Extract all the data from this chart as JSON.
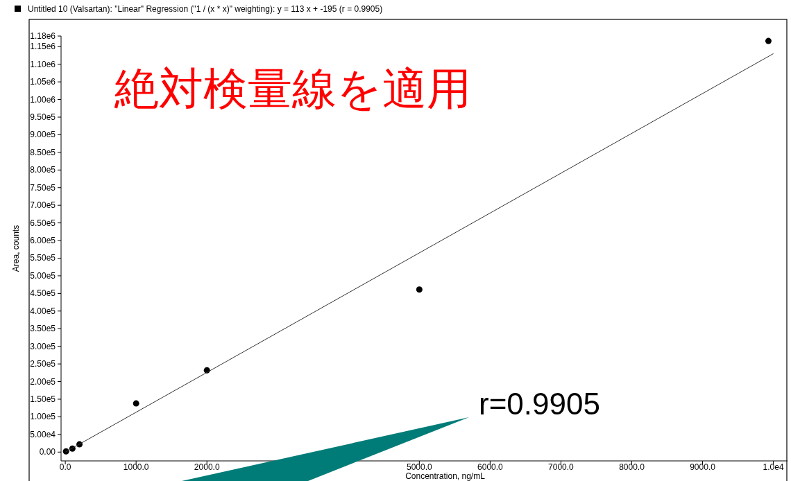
{
  "chart_data": {
    "type": "scatter",
    "xlabel": "Concentration, ng/mL",
    "ylabel": "Area, counts",
    "legend": "top left",
    "grid": false,
    "xlim": [
      -60,
      10200
    ],
    "ylim": [
      -25000,
      1180000
    ],
    "xticks": [
      {
        "value": 0,
        "label": "0.0"
      },
      {
        "value": 1000,
        "label": "1000.0"
      },
      {
        "value": 2000,
        "label": "2000.0"
      },
      {
        "value": 3000,
        "label": null
      },
      {
        "value": 4000,
        "label": null
      },
      {
        "value": 5000,
        "label": "5000.0"
      },
      {
        "value": 6000,
        "label": "6000.0"
      },
      {
        "value": 7000,
        "label": "7000.0"
      },
      {
        "value": 8000,
        "label": "8000.0"
      },
      {
        "value": 9000,
        "label": "9000.0"
      },
      {
        "value": 10000,
        "label": "1.0e4"
      }
    ],
    "yticks": [
      {
        "value": 0,
        "label": "0.00"
      },
      {
        "value": 50000,
        "label": "5.00e4"
      },
      {
        "value": 100000,
        "label": "1.00e5"
      },
      {
        "value": 150000,
        "label": "1.50e5"
      },
      {
        "value": 200000,
        "label": "2.00e5"
      },
      {
        "value": 250000,
        "label": "2.50e5"
      },
      {
        "value": 300000,
        "label": "3.00e5"
      },
      {
        "value": 350000,
        "label": "3.50e5"
      },
      {
        "value": 400000,
        "label": "4.00e5"
      },
      {
        "value": 450000,
        "label": "4.50e5"
      },
      {
        "value": 500000,
        "label": "5.00e5"
      },
      {
        "value": 550000,
        "label": "5.50e5"
      },
      {
        "value": 600000,
        "label": "6.00e5"
      },
      {
        "value": 650000,
        "label": "6.50e5"
      },
      {
        "value": 700000,
        "label": "7.00e5"
      },
      {
        "value": 750000,
        "label": "7.50e5"
      },
      {
        "value": 800000,
        "label": "8.00e5"
      },
      {
        "value": 850000,
        "label": "8.50e5"
      },
      {
        "value": 900000,
        "label": "9.00e5"
      },
      {
        "value": 950000,
        "label": "9.50e5"
      },
      {
        "value": 1000000,
        "label": "1.00e6"
      },
      {
        "value": 1050000,
        "label": "1.05e6"
      },
      {
        "value": 1100000,
        "label": "1.10e6"
      },
      {
        "value": 1150000,
        "label": "1.15e6"
      },
      {
        "value": 1180000,
        "label": "1.18e6"
      }
    ],
    "series": [
      {
        "name": "Untitled 10 (Valsartan): \"Linear\" Regression (\"1  / (x * x)\" weighting): y = 113 x + -195 (r = 0.9905)",
        "color": "#000000",
        "marker": "circle",
        "x": [
          10,
          100,
          200,
          1000,
          2000,
          5000,
          9930
        ],
        "values": [
          2000,
          10000,
          22000,
          138000,
          232000,
          461000,
          1166000
        ]
      },
      {
        "type": "line",
        "color": "#333333",
        "marker": "none",
        "x": [
          0,
          10000
        ],
        "values": [
          0,
          1130000
        ]
      }
    ],
    "annotations": [
      "絶対検量線を適用",
      "r=0.9905"
    ]
  }
}
